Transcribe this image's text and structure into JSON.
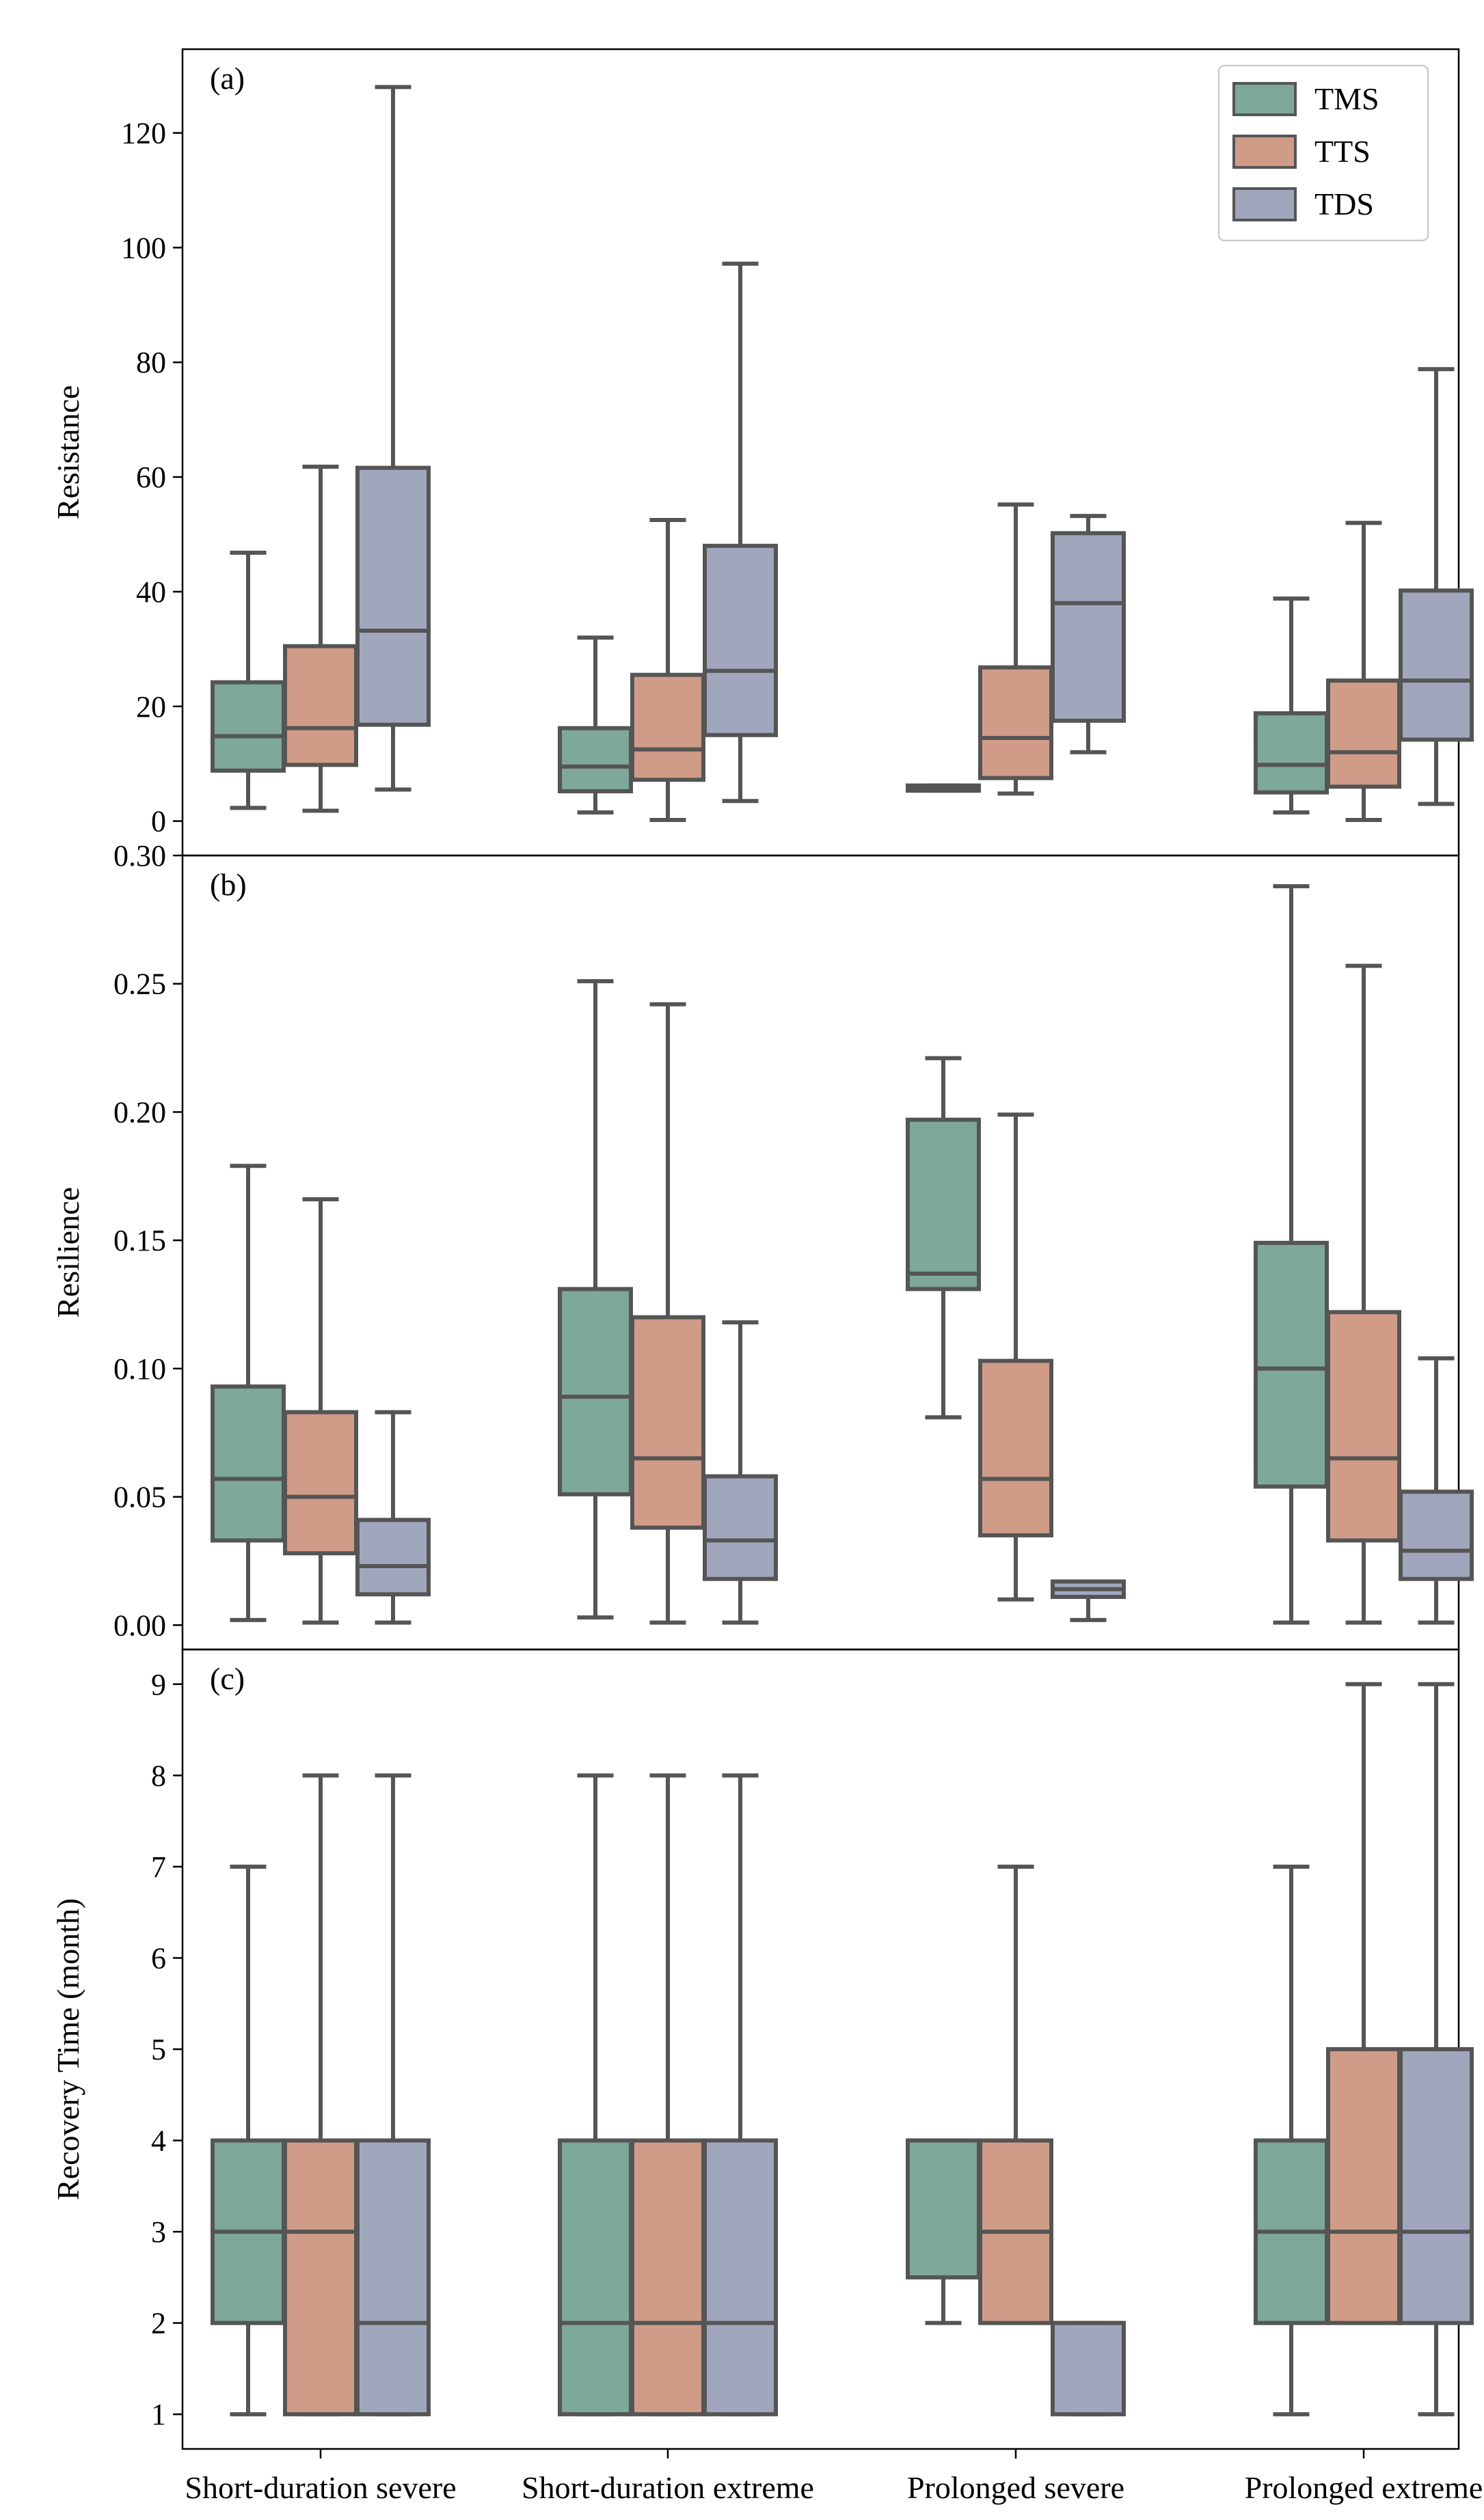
{
  "chart_data": {
    "type": "boxplot",
    "categories": [
      "Short-duration severe",
      "Short-duration extreme",
      "Prolonged severe",
      "Prolonged extreme"
    ],
    "series_names": [
      "TMS",
      "TTS",
      "TDS"
    ],
    "colors": {
      "TMS": "#7ea899",
      "TTS": "#d09c88",
      "TDS": "#a0a7bd",
      "stroke": "#555555"
    },
    "legend_position": "top-right",
    "panels": [
      {
        "label": "(a)",
        "ylabel": "Resistance",
        "ylim": [
          -6,
          134.6
        ],
        "yticks": [
          0,
          20,
          40,
          60,
          80,
          100,
          120
        ],
        "tick_labels": [
          "0",
          "20",
          "40",
          "60",
          "80",
          "100",
          "120"
        ],
        "legend": true,
        "boxes": [
          [
            {
              "low": 2.3,
              "q1": 8.8,
              "median": 14.8,
              "q3": 24.2,
              "high": 46.8
            },
            {
              "low": 1.8,
              "q1": 9.8,
              "median": 16.2,
              "q3": 30.5,
              "high": 61.8
            },
            {
              "low": 5.5,
              "q1": 16.8,
              "median": 33.2,
              "q3": 61.6,
              "high": 128.0
            }
          ],
          [
            {
              "low": 1.5,
              "q1": 5.2,
              "median": 9.5,
              "q3": 16.2,
              "high": 32.0
            },
            {
              "low": 0.2,
              "q1": 7.2,
              "median": 12.5,
              "q3": 25.5,
              "high": 52.5
            },
            {
              "low": 3.5,
              "q1": 15.0,
              "median": 26.2,
              "q3": 48.0,
              "high": 97.2
            }
          ],
          [
            {
              "low": 5.3,
              "q1": 5.3,
              "median": 5.8,
              "q3": 6.2,
              "high": 6.2
            },
            {
              "low": 4.8,
              "q1": 7.5,
              "median": 14.5,
              "q3": 26.8,
              "high": 55.2
            },
            {
              "low": 12.0,
              "q1": 17.5,
              "median": 38.0,
              "q3": 50.2,
              "high": 53.2
            }
          ],
          [
            {
              "low": 1.5,
              "q1": 5.0,
              "median": 9.8,
              "q3": 18.8,
              "high": 38.8
            },
            {
              "low": 0.2,
              "q1": 6.0,
              "median": 12.0,
              "q3": 24.5,
              "high": 52.0
            },
            {
              "low": 3.0,
              "q1": 14.2,
              "median": 24.5,
              "q3": 40.2,
              "high": 78.8
            }
          ]
        ]
      },
      {
        "label": "(b)",
        "ylabel": "Resilience",
        "ylim": [
          -0.0095,
          0.3
        ],
        "yticks": [
          0.0,
          0.05,
          0.1,
          0.15,
          0.2,
          0.25,
          0.3
        ],
        "tick_labels": [
          "0.00",
          "0.05",
          "0.10",
          "0.15",
          "0.20",
          "0.25",
          "0.30"
        ],
        "legend": false,
        "boxes": [
          [
            {
              "low": 0.002,
              "q1": 0.033,
              "median": 0.057,
              "q3": 0.093,
              "high": 0.179
            },
            {
              "low": 0.001,
              "q1": 0.028,
              "median": 0.05,
              "q3": 0.083,
              "high": 0.166
            },
            {
              "low": 0.001,
              "q1": 0.012,
              "median": 0.023,
              "q3": 0.041,
              "high": 0.083
            }
          ],
          [
            {
              "low": 0.003,
              "q1": 0.051,
              "median": 0.089,
              "q3": 0.131,
              "high": 0.251
            },
            {
              "low": 0.001,
              "q1": 0.038,
              "median": 0.065,
              "q3": 0.12,
              "high": 0.242
            },
            {
              "low": 0.001,
              "q1": 0.018,
              "median": 0.033,
              "q3": 0.058,
              "high": 0.118
            }
          ],
          [
            {
              "low": 0.081,
              "q1": 0.131,
              "median": 0.137,
              "q3": 0.197,
              "high": 0.221
            },
            {
              "low": 0.01,
              "q1": 0.035,
              "median": 0.057,
              "q3": 0.103,
              "high": 0.199
            },
            {
              "low": 0.002,
              "q1": 0.011,
              "median": 0.014,
              "q3": 0.017,
              "high": 0.017
            }
          ],
          [
            {
              "low": 0.001,
              "q1": 0.054,
              "median": 0.1,
              "q3": 0.149,
              "high": 0.288
            },
            {
              "low": 0.001,
              "q1": 0.033,
              "median": 0.065,
              "q3": 0.122,
              "high": 0.257
            },
            {
              "low": 0.001,
              "q1": 0.018,
              "median": 0.029,
              "q3": 0.052,
              "high": 0.104
            }
          ]
        ]
      },
      {
        "label": "(c)",
        "ylabel": "Recovery Time (month)",
        "ylim": [
          0.62,
          9.38
        ],
        "yticks": [
          1,
          2,
          3,
          4,
          5,
          6,
          7,
          8,
          9
        ],
        "tick_labels": [
          "1",
          "2",
          "3",
          "4",
          "5",
          "6",
          "7",
          "8",
          "9"
        ],
        "legend": false,
        "boxes": [
          [
            {
              "low": 1,
              "q1": 2,
              "median": 3,
              "q3": 4,
              "high": 7
            },
            {
              "low": 1,
              "q1": 1,
              "median": 3,
              "q3": 4,
              "high": 8
            },
            {
              "low": 1,
              "q1": 1,
              "median": 2,
              "q3": 4,
              "high": 8
            }
          ],
          [
            {
              "low": 1,
              "q1": 1,
              "median": 2,
              "q3": 4,
              "high": 8
            },
            {
              "low": 1,
              "q1": 1,
              "median": 2,
              "q3": 4,
              "high": 8
            },
            {
              "low": 1,
              "q1": 1,
              "median": 2,
              "q3": 4,
              "high": 8
            }
          ],
          [
            {
              "low": 2,
              "q1": 2.5,
              "median": 4,
              "q3": 4,
              "high": 4
            },
            {
              "low": 2,
              "q1": 2,
              "median": 3,
              "q3": 4,
              "high": 7
            },
            {
              "low": 1,
              "q1": 1,
              "median": 2,
              "q3": 2,
              "high": 2
            }
          ],
          [
            {
              "low": 1,
              "q1": 2,
              "median": 3,
              "q3": 4,
              "high": 7
            },
            {
              "low": 2,
              "q1": 2,
              "median": 3,
              "q3": 5,
              "high": 9
            },
            {
              "low": 1,
              "q1": 2,
              "median": 3,
              "q3": 5,
              "high": 9
            }
          ]
        ]
      }
    ]
  }
}
